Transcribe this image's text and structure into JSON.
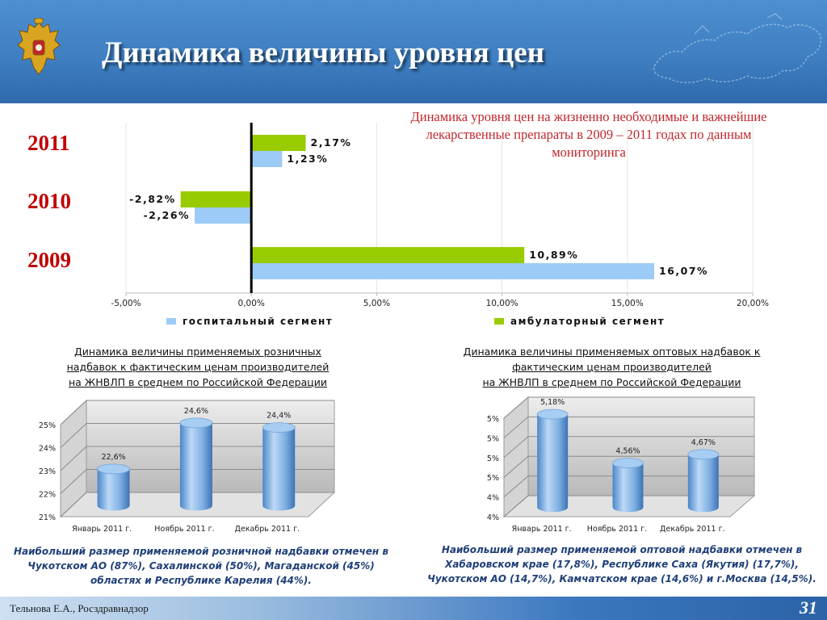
{
  "header": {
    "title": "Динамика величины уровня цен",
    "emblem_icon": "coat-of-arms-icon",
    "map_icon": "russia-map-icon"
  },
  "top_caption": "Динамика уровня цен на жизненно необходимые и важнейшие лекарственные препараты в 2009 – 2011 годах по данным мониторинга",
  "chart_data": [
    {
      "type": "bar",
      "orientation": "horizontal",
      "categories": [
        "2011",
        "2010",
        "2009"
      ],
      "series": [
        {
          "name": "амбулаторный сегмент",
          "color": "#99cc00",
          "values": [
            2.17,
            -2.82,
            10.89
          ],
          "labels": [
            "2,17%",
            "-2,82%",
            "10,89%"
          ]
        },
        {
          "name": "госпитальный сегмент",
          "color": "#9ccbf7",
          "values": [
            1.23,
            -2.26,
            16.07
          ],
          "labels": [
            "1,23%",
            "-2,26%",
            "16,07%"
          ]
        }
      ],
      "xlim": [
        -5,
        20
      ],
      "xticks": [
        -5,
        0,
        5,
        10,
        15,
        20
      ],
      "xtick_labels": [
        "-5,00%",
        "0,00%",
        "5,00%",
        "10,00%",
        "15,00%",
        "20,00%"
      ],
      "legend": [
        "госпитальный сегмент",
        "амбулаторный сегмент"
      ],
      "legend_position": "bottom"
    },
    {
      "type": "bar",
      "style": "3d-cylinder",
      "title": "Динамика величины применяемых розничных надбавок к фактическим ценам производителей на ЖНВЛП в среднем по Российской Федерации",
      "title_lines": [
        "Динамика величины применяемых розничных",
        "надбавок к фактическим ценам производителей",
        "на ЖНВЛП в среднем по Российской Федерации"
      ],
      "categories": [
        "Январь 2011 г.",
        "Ноябрь 2011 г.",
        "Декабрь 2011 г."
      ],
      "values": [
        22.6,
        24.6,
        24.4
      ],
      "labels": [
        "22,6%",
        "24,6%",
        "24,4%"
      ],
      "ylim": [
        21,
        25
      ],
      "yticks": [
        21,
        22,
        23,
        24,
        25
      ],
      "ytick_labels": [
        "21%",
        "22%",
        "23%",
        "24%",
        "25%"
      ],
      "grid": true
    },
    {
      "type": "bar",
      "style": "3d-cylinder",
      "title": "Динамика величины применяемых оптовых надбавок к фактическим ценам производителей на ЖНВЛП в среднем по Российской Федерации",
      "title_lines": [
        "Динамика величины применяемых оптовых надбавок к",
        "фактическим ценам производителей",
        "на ЖНВЛП в среднем по Российской Федерации"
      ],
      "categories": [
        "Январь 2011 г.",
        "Ноябрь 2011 г.",
        "Декабрь 2011 г."
      ],
      "values": [
        5.18,
        4.56,
        4.67
      ],
      "labels": [
        "5,18%",
        "4,56%",
        "4,67%"
      ],
      "ylim": [
        4,
        5.25
      ],
      "yticks": [
        4,
        4.25,
        4.5,
        4.75,
        5,
        5.25
      ],
      "ytick_labels": [
        "4%",
        "4%",
        "5%",
        "5%",
        "5%",
        "5%"
      ],
      "grid": true
    }
  ],
  "notes": {
    "retail": "Наибольший размер применяемой розничной надбавки отмечен в Чукотском АО (87%), Сахалинской (50%), Магаданской (45%) областях и Республике Карелия (44%).",
    "wholesale": "Наибольший размер применяемой оптовой надбавки отмечен в Хабаровском крае (17,8%), Республике Саха (Якутия) (17,7%), Чукотском АО (14,7%), Камчатском крае (14,6%) и г.Москва (14,5%)."
  },
  "footer": {
    "author": "Тельнова Е.А., Росздравнадзор",
    "page_number": "31"
  }
}
